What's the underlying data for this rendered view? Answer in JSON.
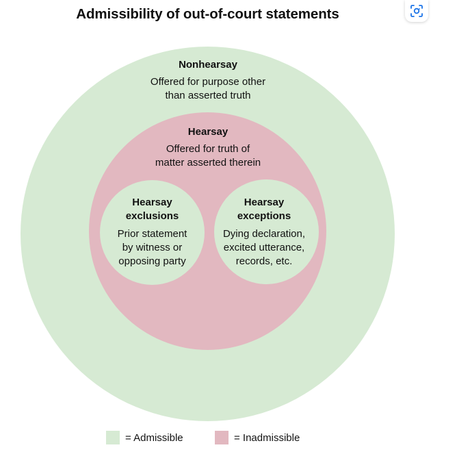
{
  "title": "Admissibility of out-of-court statements",
  "colors": {
    "admissible": "#d6ead3",
    "inadmissible": "#e2b8c0"
  },
  "diagram": {
    "nonhearsay": {
      "heading": "Nonhearsay",
      "line1": "Offered for purpose other",
      "line2": "than asserted truth"
    },
    "hearsay": {
      "heading": "Hearsay",
      "line1": "Offered for truth of",
      "line2": "matter asserted therein"
    },
    "exclusions": {
      "heading1": "Hearsay",
      "heading2": "exclusions",
      "line1": "Prior statement",
      "line2": "by witness or",
      "line3": "opposing party"
    },
    "exceptions": {
      "heading1": "Hearsay",
      "heading2": "exceptions",
      "line1": "Dying declaration,",
      "line2": "excited utterance,",
      "line3": "records, etc."
    }
  },
  "legend": {
    "admissible": "= Admissible",
    "inadmissible": "= Inadmissible"
  },
  "toolbar": {
    "lens_icon": "lens-search-icon"
  }
}
